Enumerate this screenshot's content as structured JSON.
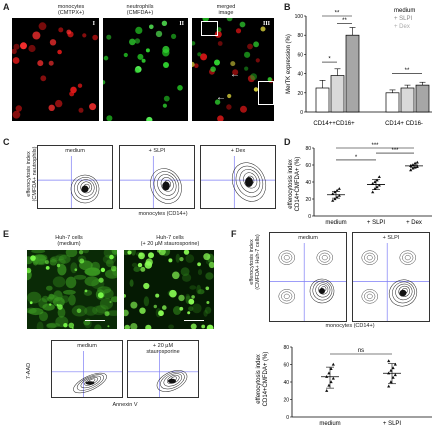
{
  "panels": {
    "A": {
      "letter": "A",
      "col1_title": "monocytes\n(CMTPX+)",
      "col2_title": "neutrophils\n(CMFDA+)",
      "col3_title": "merged\nimage",
      "roman1": "I",
      "roman2": "II",
      "roman3": "III"
    },
    "B": {
      "letter": "B",
      "ylabel": "MerTK expression (%)",
      "group1": "CD14++CD16+",
      "group2": "CD14+  CD16-",
      "legend": [
        "medium",
        "+ SLPI",
        "+ Dex"
      ],
      "sig1": "*",
      "sig2": "**",
      "sig3": "**",
      "sig4": "**",
      "yticks": [
        "0",
        "20",
        "40",
        "60",
        "80",
        "100"
      ]
    },
    "C": {
      "letter": "C",
      "titles": [
        "medium",
        "+ SLPI",
        "+ Dex"
      ],
      "ylabel": "efferocytosis index\n(CMFDA+ neutrophils)",
      "xlabel": "monocytes (CD14+)"
    },
    "D": {
      "letter": "D",
      "ylabel": "efferocytosis index\nCD14+CMFDA+ (%)",
      "categories": [
        "medium",
        "+ SLPI",
        "+ Dex"
      ],
      "sig": [
        "*",
        "***",
        "***"
      ],
      "yticks": [
        "0",
        "20",
        "40",
        "60",
        "80"
      ]
    },
    "E": {
      "letter": "E",
      "img1_title": "Huh-7 cells\n(medium)",
      "img2_title": "Huh-7 cells\n(+ 20 µM staurosporine)",
      "flow1_title": "medium",
      "flow2_title": "+ 20 µM\nstaurosporine",
      "ylabel": "7-AAD",
      "xlabel": "Annexin V"
    },
    "F": {
      "letter": "F",
      "titles": [
        "medium",
        "+ SLPI"
      ],
      "ylabel": "efferocytosis index\n(CMFDA+ Huh-7 cells)",
      "xlabel": "monocytes (CD14+)",
      "dot_ylabel": "efferocytosis index\nCD14+CMFDA+ (%)",
      "categories": [
        "medium",
        "+ SLPI"
      ],
      "sig": "ns",
      "yticks": [
        "0",
        "20",
        "40",
        "60",
        "80"
      ]
    }
  },
  "chart_data": [
    {
      "type": "bar",
      "panel": "B",
      "categories": [
        "CD14++CD16+",
        "CD14+ CD16-"
      ],
      "series": [
        {
          "name": "medium",
          "values": [
            25,
            20
          ]
        },
        {
          "name": "+ SLPI",
          "values": [
            38,
            25
          ]
        },
        {
          "name": "+ Dex",
          "values": [
            80,
            28
          ]
        }
      ],
      "errors": [
        [
          8,
          7,
          8
        ],
        [
          3,
          3,
          3
        ]
      ],
      "ylabel": "MerTK expression (%)",
      "ylim": [
        0,
        100
      ],
      "colors": [
        "#ffffff",
        "#d9d9d9",
        "#a6a6a6"
      ]
    },
    {
      "type": "scatter",
      "panel": "D",
      "categories": [
        "medium",
        "+ SLPI",
        "+ Dex"
      ],
      "points": [
        [
          18,
          20,
          22,
          24,
          26,
          28,
          30,
          32
        ],
        [
          28,
          32,
          34,
          36,
          38,
          40,
          42,
          46
        ],
        [
          54,
          56,
          57,
          58,
          59,
          60,
          62,
          63
        ]
      ],
      "means": [
        25,
        37,
        59
      ],
      "ylabel": "efferocytosis index CD14+CMFDA+ (%)",
      "ylim": [
        0,
        80
      ]
    },
    {
      "type": "scatter",
      "panel": "F",
      "categories": [
        "medium",
        "+ SLPI"
      ],
      "points": [
        [
          30,
          36,
          40,
          44,
          46,
          50,
          55,
          60
        ],
        [
          35,
          40,
          45,
          48,
          50,
          53,
          56,
          60,
          64
        ]
      ],
      "means": [
        46,
        50
      ],
      "ylabel": "efferocytosis index CD14+CMFDA+ (%)",
      "ylim": [
        0,
        80
      ]
    }
  ]
}
